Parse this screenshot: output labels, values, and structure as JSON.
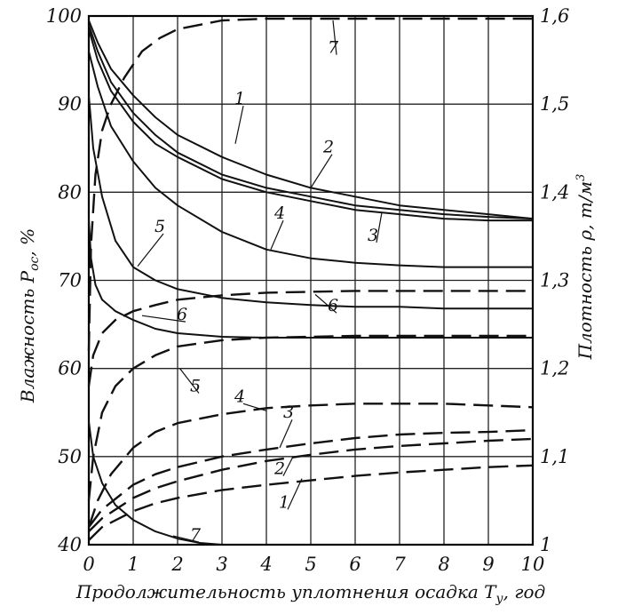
{
  "chart_data": {
    "type": "line",
    "xlabel": "Продолжительность уплотнения осадка T",
    "xlabel_sub": "у",
    "xlabel_unit": ", год",
    "ylabel_left": "Влажность P",
    "ylabel_left_sub": "ос",
    "ylabel_left_unit": ", %",
    "ylabel_right": "Плотность ρ, т/м",
    "ylabel_right_sup": "3",
    "xlim": [
      0,
      10
    ],
    "ylim_left": [
      40,
      100
    ],
    "ylim_right": [
      1.0,
      1.6
    ],
    "x_ticks": [
      "0",
      "1",
      "2",
      "3",
      "4",
      "5",
      "6",
      "7",
      "8",
      "9",
      "10"
    ],
    "y_ticks_left": [
      "40",
      "50",
      "60",
      "70",
      "80",
      "90",
      "100"
    ],
    "y_ticks_right": [
      "1",
      "1,1",
      "1,2",
      "1,3",
      "1,4",
      "1,5",
      "1,6"
    ],
    "grid": true,
    "series": [
      {
        "name": "1",
        "kind": "moisture",
        "axis": "left",
        "x": [
          0,
          0.2,
          0.5,
          1,
          1.5,
          2,
          3,
          4,
          5,
          6,
          7,
          8,
          9,
          10
        ],
        "y": [
          99.5,
          97,
          94,
          91,
          88.5,
          86.5,
          84,
          82,
          80.5,
          79.5,
          78.5,
          78,
          77.5,
          77
        ]
      },
      {
        "name": "2",
        "kind": "moisture",
        "axis": "left",
        "x": [
          0,
          0.2,
          0.5,
          1,
          1.5,
          2,
          3,
          4,
          5,
          6,
          7,
          8,
          9,
          10
        ],
        "y": [
          99,
          96,
          92.5,
          89,
          86.5,
          84.5,
          82,
          80.5,
          79.5,
          78.5,
          78,
          77.5,
          77.2,
          77
        ]
      },
      {
        "name": "3",
        "kind": "moisture",
        "axis": "left",
        "x": [
          0,
          0.2,
          0.5,
          1,
          1.5,
          2,
          3,
          4,
          5,
          6,
          7,
          8,
          9,
          10
        ],
        "y": [
          98.5,
          95,
          91.5,
          88,
          85.5,
          84,
          81.5,
          80,
          79,
          78,
          77.5,
          77,
          76.8,
          76.8
        ]
      },
      {
        "name": "4",
        "kind": "moisture",
        "axis": "left",
        "x": [
          0,
          0.2,
          0.5,
          1,
          1.5,
          2,
          3,
          4,
          5,
          6,
          7,
          8,
          9,
          10
        ],
        "y": [
          96,
          92,
          87.5,
          83.5,
          80.5,
          78.5,
          75.5,
          73.5,
          72.5,
          72,
          71.7,
          71.5,
          71.5,
          71.5
        ]
      },
      {
        "name": "5",
        "kind": "moisture",
        "axis": "left",
        "x": [
          0,
          0.1,
          0.3,
          0.6,
          1,
          1.5,
          2,
          3,
          4,
          5,
          6,
          7,
          8,
          10
        ],
        "y": [
          91,
          85,
          79.5,
          74.5,
          71.5,
          70,
          69,
          68,
          67.5,
          67.2,
          67,
          67,
          66.8,
          66.8
        ]
      },
      {
        "name": "6",
        "kind": "moisture",
        "axis": "left",
        "x": [
          0,
          0.05,
          0.15,
          0.3,
          0.6,
          1,
          1.5,
          2,
          3,
          4,
          5,
          7,
          10
        ],
        "y": [
          77,
          72.5,
          69.5,
          67.8,
          66.5,
          65.5,
          64.5,
          64,
          63.6,
          63.5,
          63.5,
          63.5,
          63.5
        ]
      },
      {
        "name": "7",
        "kind": "moisture",
        "axis": "left",
        "x": [
          0,
          0.1,
          0.3,
          0.6,
          1,
          1.5,
          2,
          2.5,
          3
        ],
        "y": [
          54,
          50,
          47,
          44.5,
          42.8,
          41.5,
          40.7,
          40.2,
          40
        ]
      },
      {
        "name": "1",
        "kind": "density",
        "axis": "right",
        "x": [
          0,
          0.3,
          1,
          1.5,
          2,
          3,
          4,
          5,
          6,
          7,
          8,
          9,
          10
        ],
        "y": [
          1.005,
          1.02,
          1.038,
          1.047,
          1.053,
          1.062,
          1.068,
          1.073,
          1.078,
          1.082,
          1.085,
          1.088,
          1.09
        ]
      },
      {
        "name": "2",
        "kind": "density",
        "axis": "right",
        "x": [
          0,
          0.3,
          1,
          1.5,
          2,
          3,
          4,
          5,
          6,
          7,
          8,
          9,
          10
        ],
        "y": [
          1.015,
          1.03,
          1.053,
          1.064,
          1.072,
          1.085,
          1.095,
          1.102,
          1.108,
          1.112,
          1.115,
          1.118,
          1.12
        ]
      },
      {
        "name": "3",
        "kind": "density",
        "axis": "right",
        "x": [
          0,
          0.3,
          1,
          1.5,
          2,
          3,
          4,
          5,
          6,
          7,
          8,
          9,
          10
        ],
        "y": [
          1.02,
          1.04,
          1.068,
          1.08,
          1.088,
          1.1,
          1.108,
          1.115,
          1.121,
          1.125,
          1.127,
          1.128,
          1.13
        ]
      },
      {
        "name": "4",
        "kind": "density",
        "axis": "right",
        "x": [
          0,
          0.2,
          0.5,
          1,
          1.5,
          2,
          3,
          4,
          5,
          6,
          7,
          8,
          9,
          10
        ],
        "y": [
          1.02,
          1.05,
          1.08,
          1.11,
          1.128,
          1.138,
          1.148,
          1.155,
          1.158,
          1.16,
          1.16,
          1.16,
          1.158,
          1.156
        ]
      },
      {
        "name": "5",
        "kind": "density",
        "axis": "right",
        "x": [
          0,
          0.1,
          0.3,
          0.6,
          1,
          1.5,
          2,
          3,
          4,
          5,
          6,
          7,
          8,
          9,
          10
        ],
        "y": [
          1.05,
          1.1,
          1.15,
          1.18,
          1.2,
          1.215,
          1.225,
          1.232,
          1.235,
          1.236,
          1.237,
          1.237,
          1.237,
          1.237,
          1.237
        ]
      },
      {
        "name": "6",
        "kind": "density",
        "axis": "right",
        "x": [
          0,
          0.1,
          0.3,
          0.6,
          1,
          1.5,
          2,
          3,
          4,
          5,
          6,
          7,
          8,
          9,
          10
        ],
        "y": [
          1.18,
          1.215,
          1.24,
          1.255,
          1.265,
          1.272,
          1.278,
          1.283,
          1.286,
          1.287,
          1.288,
          1.288,
          1.288,
          1.288,
          1.288
        ]
      },
      {
        "name": "7",
        "kind": "density",
        "axis": "right",
        "x": [
          0,
          0.05,
          0.15,
          0.3,
          0.5,
          0.8,
          1.2,
          1.6,
          2,
          2.5,
          3,
          4,
          5,
          6,
          7,
          8,
          9,
          10
        ],
        "y": [
          1.22,
          1.34,
          1.42,
          1.47,
          1.5,
          1.53,
          1.56,
          1.575,
          1.585,
          1.59,
          1.595,
          1.597,
          1.597,
          1.597,
          1.597,
          1.597,
          1.597,
          1.597
        ]
      }
    ],
    "curve_labels": [
      {
        "text": "1",
        "x": 3.4,
        "y": 90,
        "axis": "left",
        "lead_x": 3.3,
        "lead_y": 85.5
      },
      {
        "text": "2",
        "x": 5.4,
        "y": 84.5,
        "axis": "left",
        "lead_x": 5.0,
        "lead_y": 80.5
      },
      {
        "text": "3",
        "x": 6.4,
        "y": 74.5,
        "axis": "left",
        "lead_x": 6.6,
        "lead_y": 77.7
      },
      {
        "text": "4",
        "x": 4.3,
        "y": 77,
        "axis": "left",
        "lead_x": 4.1,
        "lead_y": 73.5
      },
      {
        "text": "5",
        "x": 1.6,
        "y": 75.5,
        "axis": "left",
        "lead_x": 1.1,
        "lead_y": 71.6
      },
      {
        "text": "6",
        "x": 5.5,
        "y": 66.5,
        "axis": "left",
        "lead_x": 5.1,
        "lead_y": 68.4
      },
      {
        "text": "6",
        "x": 2.1,
        "y": 65.5,
        "axis": "left",
        "lead_x": 1.2,
        "lead_y": 66
      },
      {
        "text": "7",
        "x": 5.5,
        "y": 1.558,
        "axis": "right",
        "lead_x": 5.5,
        "lead_y": 1.595
      },
      {
        "text": "7",
        "x": 2.4,
        "y": 40.5,
        "axis": "left",
        "lead_x": 1.9,
        "lead_y": 41
      },
      {
        "text": "5",
        "x": 2.4,
        "y": 1.174,
        "axis": "right",
        "lead_x": 2.05,
        "lead_y": 1.2
      },
      {
        "text": "4",
        "x": 3.4,
        "y": 1.162,
        "axis": "right",
        "lead_x": 4.0,
        "lead_y": 1.152
      },
      {
        "text": "3",
        "x": 4.5,
        "y": 1.144,
        "axis": "right",
        "lead_x": 4.3,
        "lead_y": 1.11
      },
      {
        "text": "2",
        "x": 4.3,
        "y": 1.08,
        "axis": "right",
        "lead_x": 4.6,
        "lead_y": 1.1
      },
      {
        "text": "1",
        "x": 4.4,
        "y": 1.042,
        "axis": "right",
        "lead_x": 4.8,
        "lead_y": 1.075
      }
    ]
  }
}
